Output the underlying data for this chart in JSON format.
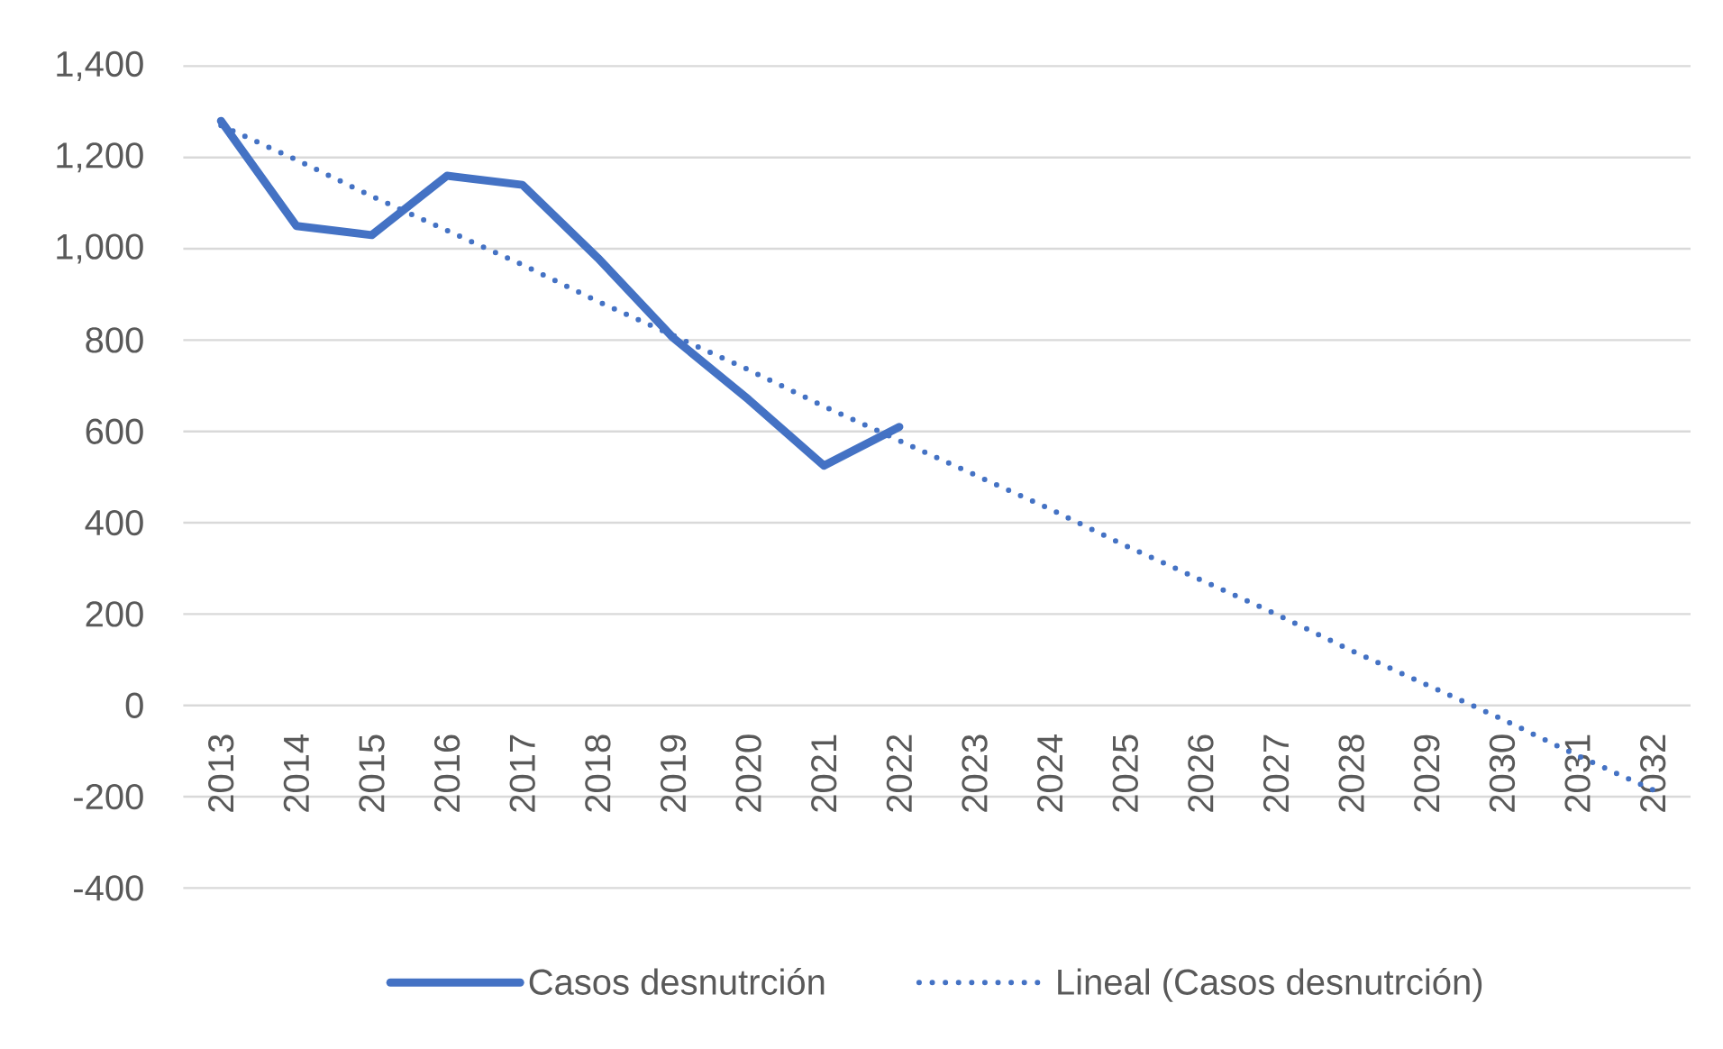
{
  "chart_data": {
    "type": "line",
    "categories": [
      "2013",
      "2014",
      "2015",
      "2016",
      "2017",
      "2018",
      "2019",
      "2020",
      "2021",
      "2022",
      "2023",
      "2024",
      "2025",
      "2026",
      "2027",
      "2028",
      "2029",
      "2030",
      "2031",
      "2032"
    ],
    "series": [
      {
        "name": "Casos desnutrción",
        "color": "#4472c4",
        "line_style": "solid",
        "values": [
          1280,
          1050,
          1030,
          1160,
          1140,
          980,
          805,
          670,
          525,
          610,
          null,
          null,
          null,
          null,
          null,
          null,
          null,
          null,
          null,
          null
        ]
      },
      {
        "name": "Lineal (Casos desnutrción)",
        "color": "#4472c4",
        "line_style": "dotted",
        "values": [
          1270,
          1195,
          1115,
          1040,
          965,
          885,
          810,
          735,
          655,
          580,
          505,
          430,
          350,
          275,
          200,
          120,
          45,
          -30,
          -110,
          -185
        ]
      }
    ],
    "ylim": [
      -400,
      1400
    ],
    "yticks": [
      -400,
      -200,
      0,
      200,
      400,
      600,
      800,
      {
        "value": 1000,
        "label": "1,000"
      },
      {
        "value": 1200,
        "label": "1,200"
      },
      {
        "value": 1400,
        "label": "1,400"
      }
    ],
    "grid": "y",
    "legend": "bottom"
  }
}
